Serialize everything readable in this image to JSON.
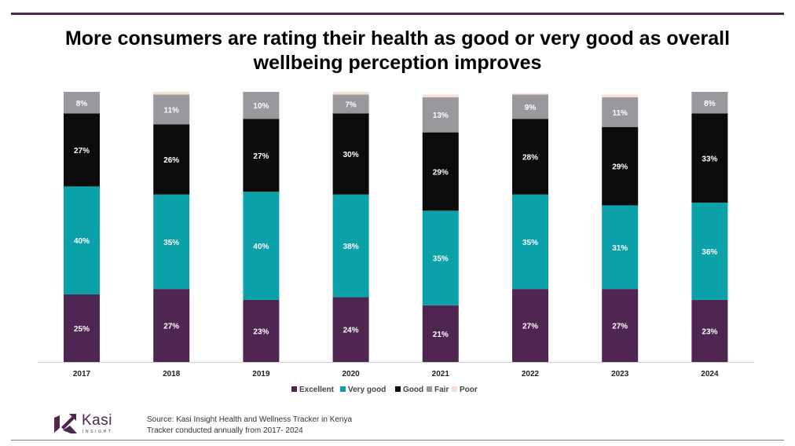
{
  "title_lines": [
    "More consumers are rating their health as good or very good as overall",
    "wellbeing perception improves"
  ],
  "chart_data": {
    "type": "bar",
    "stacked": true,
    "percent": true,
    "title": "More consumers are rating their health as good or very good as overall wellbeing perception improves",
    "categories": [
      "2017",
      "2018",
      "2019",
      "2020",
      "2021",
      "2022",
      "2023",
      "2024"
    ],
    "series": [
      {
        "name": "Excellent",
        "color": "#4f2552",
        "label_color": "#ffffff",
        "values": [
          25,
          27,
          23,
          24,
          21,
          27,
          27,
          23
        ]
      },
      {
        "name": "Very good",
        "color": "#0aa1a8",
        "label_color": "#ffffff",
        "values": [
          40,
          35,
          40,
          38,
          35,
          35,
          31,
          36
        ]
      },
      {
        "name": "Good",
        "color": "#0b0b0b",
        "label_color": "#ffffff",
        "values": [
          27,
          26,
          27,
          30,
          29,
          28,
          29,
          33
        ]
      },
      {
        "name": "Fair",
        "color": "#9a989c",
        "label_color": "#ffffff",
        "values": [
          8,
          11,
          10,
          7,
          13,
          9,
          11,
          8
        ]
      },
      {
        "name": "Poor",
        "color": "#f6ded0",
        "label_color": "#ffffff",
        "values": [
          0,
          1,
          0,
          1,
          1,
          0.5,
          1,
          0
        ]
      }
    ],
    "data_labels": [
      [
        "25%",
        "27%",
        "23%",
        "24%",
        "21%",
        "27%",
        "27%",
        "23%"
      ],
      [
        "40%",
        "35%",
        "40%",
        "38%",
        "35%",
        "35%",
        "31%",
        "36%"
      ],
      [
        "27%",
        "26%",
        "27%",
        "30%",
        "29%",
        "28%",
        "29%",
        "33%"
      ],
      [
        "8%",
        "11%",
        "10%",
        "7%",
        "13%",
        "9%",
        "11%",
        "8%"
      ],
      [
        "",
        "",
        "",
        "",
        "",
        "",
        "",
        ""
      ]
    ],
    "ylim": [
      0,
      100
    ],
    "xlabel": "",
    "ylabel": "",
    "grid": false,
    "legend_position": "bottom"
  },
  "logo": {
    "word": "Kasi",
    "sub": "INSIGHT"
  },
  "source_lines": [
    "Source: Kasi Insight Health and Wellness Tracker in Kenya",
    "Tracker conducted annually from 2017- 2024"
  ]
}
